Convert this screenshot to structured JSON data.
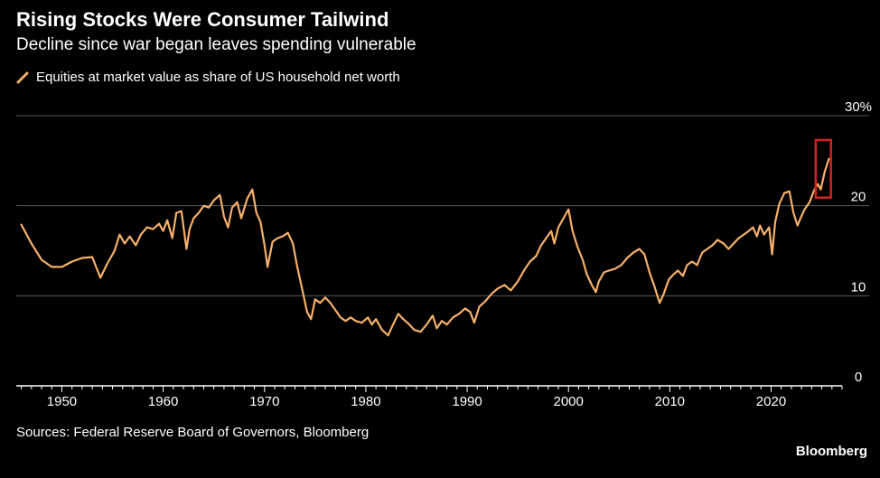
{
  "header": {
    "title": "Rising Stocks Were Consumer Tailwind",
    "subtitle": "Decline since war began leaves spending vulnerable"
  },
  "footer": {
    "source": "Sources: Federal Reserve Board of Governors, Bloomberg",
    "brand": "Bloomberg"
  },
  "colors": {
    "background": "#000000",
    "line": "#f5b06a",
    "grid": "#5a5a5a",
    "axis": "#ffffff",
    "highlight_box": "#d42020"
  },
  "chart_data": {
    "type": "line",
    "title": "Rising Stocks Were Consumer Tailwind",
    "subtitle": "Decline since war began leaves spending vulnerable",
    "xlabel": "",
    "ylabel": "",
    "y_unit": "%",
    "xlim": [
      1945.5,
      2027
    ],
    "ylim": [
      0,
      30
    ],
    "x_ticks": [
      1950,
      1960,
      1970,
      1980,
      1990,
      2000,
      2010,
      2020
    ],
    "y_ticks": [
      0,
      10,
      20,
      30
    ],
    "y_tick_labels": [
      "0",
      "10",
      "20",
      "30%"
    ],
    "grid": true,
    "y_axis_side": "right",
    "legend_position": "top-left",
    "highlight": {
      "x_range": [
        2024.4,
        2025.9
      ],
      "y_range": [
        20.9,
        27.3
      ]
    },
    "series": [
      {
        "name": "Equities at market value as share of US household net worth",
        "color": "#f5b06a",
        "x": [
          1946.0,
          1947.0,
          1948.0,
          1949.0,
          1950.0,
          1951.0,
          1952.0,
          1953.0,
          1953.8,
          1954.5,
          1955.2,
          1955.7,
          1956.2,
          1956.7,
          1957.3,
          1957.8,
          1958.4,
          1959.0,
          1959.6,
          1960.0,
          1960.4,
          1960.9,
          1961.3,
          1961.8,
          1962.3,
          1962.6,
          1963.0,
          1963.5,
          1964.0,
          1964.5,
          1965.0,
          1965.6,
          1966.0,
          1966.4,
          1966.8,
          1967.3,
          1967.7,
          1968.3,
          1968.8,
          1969.2,
          1969.6,
          1970.0,
          1970.3,
          1970.8,
          1971.3,
          1971.8,
          1972.3,
          1972.8,
          1973.2,
          1973.7,
          1974.2,
          1974.6,
          1975.0,
          1975.5,
          1976.0,
          1976.5,
          1977.0,
          1977.5,
          1978.0,
          1978.5,
          1979.0,
          1979.6,
          1980.2,
          1980.6,
          1981.0,
          1981.6,
          1982.2,
          1982.6,
          1983.2,
          1983.7,
          1984.3,
          1984.8,
          1985.4,
          1986.0,
          1986.6,
          1987.0,
          1987.5,
          1988.0,
          1988.6,
          1989.2,
          1989.8,
          1990.3,
          1990.7,
          1991.2,
          1991.8,
          1992.4,
          1993.0,
          1993.7,
          1994.3,
          1995.0,
          1995.6,
          1996.2,
          1996.8,
          1997.3,
          1997.8,
          1998.3,
          1998.6,
          1999.0,
          1999.5,
          2000.0,
          2000.4,
          2000.9,
          2001.4,
          2001.8,
          2002.3,
          2002.7,
          2003.0,
          2003.5,
          2004.0,
          2004.6,
          2005.2,
          2005.8,
          2006.4,
          2007.0,
          2007.5,
          2008.0,
          2008.5,
          2009.0,
          2009.4,
          2009.9,
          2010.4,
          2010.8,
          2011.3,
          2011.7,
          2012.2,
          2012.7,
          2013.2,
          2013.7,
          2014.2,
          2014.7,
          2015.3,
          2015.8,
          2016.3,
          2016.8,
          2017.3,
          2017.8,
          2018.2,
          2018.6,
          2018.9,
          2019.3,
          2019.8,
          2020.1,
          2020.4,
          2020.8,
          2021.3,
          2021.8,
          2022.2,
          2022.6,
          2022.9,
          2023.3,
          2023.8,
          2024.2,
          2024.6,
          2024.9,
          2025.3,
          2025.7
        ],
        "values": [
          17.9,
          15.8,
          14.0,
          13.2,
          13.2,
          13.8,
          14.2,
          14.3,
          12.0,
          13.6,
          15.0,
          16.8,
          15.8,
          16.6,
          15.6,
          16.8,
          17.6,
          17.4,
          18.0,
          17.2,
          18.4,
          16.4,
          19.2,
          19.4,
          15.2,
          17.4,
          18.6,
          19.2,
          20.0,
          19.8,
          20.6,
          21.2,
          18.8,
          17.6,
          19.8,
          20.4,
          18.6,
          20.8,
          21.8,
          19.2,
          18.2,
          15.6,
          13.2,
          16.0,
          16.4,
          16.6,
          17.0,
          15.8,
          13.4,
          10.8,
          8.2,
          7.4,
          9.6,
          9.2,
          9.8,
          9.2,
          8.4,
          7.6,
          7.2,
          7.6,
          7.2,
          7.0,
          7.6,
          6.8,
          7.4,
          6.2,
          5.6,
          6.6,
          8.0,
          7.4,
          6.8,
          6.2,
          6.0,
          6.8,
          7.8,
          6.4,
          7.2,
          6.8,
          7.6,
          8.0,
          8.6,
          8.2,
          7.0,
          8.8,
          9.4,
          10.2,
          10.8,
          11.2,
          10.6,
          11.6,
          12.8,
          13.8,
          14.4,
          15.6,
          16.4,
          17.2,
          15.8,
          17.6,
          18.6,
          19.6,
          17.2,
          15.4,
          14.0,
          12.4,
          11.2,
          10.4,
          11.6,
          12.6,
          12.8,
          13.0,
          13.4,
          14.2,
          14.8,
          15.2,
          14.6,
          12.6,
          11.0,
          9.2,
          10.2,
          11.8,
          12.4,
          12.8,
          12.2,
          13.4,
          13.8,
          13.4,
          14.8,
          15.2,
          15.6,
          16.2,
          15.8,
          15.2,
          15.8,
          16.4,
          16.8,
          17.2,
          17.6,
          16.6,
          17.8,
          16.8,
          17.6,
          14.6,
          18.2,
          20.2,
          21.4,
          21.6,
          19.2,
          17.8,
          18.6,
          19.6,
          20.4,
          21.6,
          22.4,
          21.8,
          23.8,
          25.2
        ]
      }
    ]
  }
}
